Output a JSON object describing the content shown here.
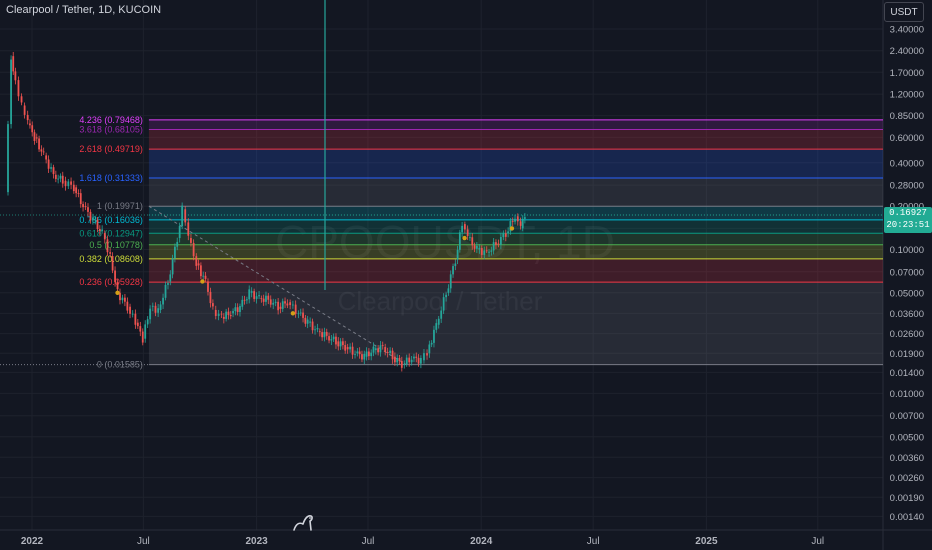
{
  "header": {
    "symbol_title": "Clearpool / Tether, 1D, KUCOIN"
  },
  "currency_button": "USDT",
  "watermark": {
    "symbol": "CPOOUSDT, 1D",
    "description": "Clearpool / Tether"
  },
  "last_price": {
    "value": "0.16927",
    "countdown": "20:23:51"
  },
  "price_axis_labels": [
    "3.40000",
    "2.40000",
    "1.70000",
    "1.20000",
    "0.85000",
    "0.60000",
    "0.40000",
    "0.28000",
    "0.20000",
    "0.14000",
    "0.10000",
    "0.07000",
    "0.05000",
    "0.03600",
    "0.02600",
    "0.01900",
    "0.01400",
    "0.01000",
    "0.00700",
    "0.00500",
    "0.00360",
    "0.00260",
    "0.00190",
    "0.00140"
  ],
  "time_axis_labels": [
    "2022",
    "Jul",
    "2023",
    "Jul",
    "2024",
    "Jul",
    "2025",
    "Jul"
  ],
  "colors": {
    "background": "#131722",
    "up": "#26a69a",
    "down": "#ef5350",
    "axis_text": "#b2b5be"
  },
  "fib_levels": [
    {
      "ratio": "4.236",
      "price": "0.79468",
      "label": "4.236 (0.79468)",
      "color": "#e040fb"
    },
    {
      "ratio": "3.618",
      "price": "0.68105",
      "label": "3.618 (0.68105)",
      "color": "#9c27b0"
    },
    {
      "ratio": "2.618",
      "price": "0.49719",
      "label": "2.618 (0.49719)",
      "color": "#f23645"
    },
    {
      "ratio": "1.618",
      "price": "0.31333",
      "label": "1.618 (0.31333)",
      "color": "#2962ff"
    },
    {
      "ratio": "1",
      "price": "0.19971",
      "label": "1 (0.19971)",
      "color": "#787b86"
    },
    {
      "ratio": "0.786",
      "price": "0.16036",
      "label": "0.786 (0.16036)",
      "color": "#00bcd4"
    },
    {
      "ratio": "0.618",
      "price": "0.12947",
      "label": "0.618 (0.12947)",
      "color": "#089981"
    },
    {
      "ratio": "0.5",
      "price": "0.10778",
      "label": "0.5 (0.10778)",
      "color": "#4caf50"
    },
    {
      "ratio": "0.382",
      "price": "0.08608",
      "label": "0.382 (0.08608)",
      "color": "#cddc39"
    },
    {
      "ratio": "0.236",
      "price": "0.05928",
      "label": "0.236 (0.05928)",
      "color": "#f23645"
    },
    {
      "ratio": "0",
      "price": "0.01585",
      "label": "0 (0.01585)",
      "color": "#787b86"
    }
  ],
  "chart_data": {
    "type": "candlestick",
    "scale": "log",
    "x_range": [
      "2021-11-10",
      "2025-10-15"
    ],
    "y_range": [
      0.0012,
      3.8
    ],
    "close_series": [
      [
        "2021-11-18",
        0.25
      ],
      [
        "2021-11-28",
        2.2
      ],
      [
        "2021-12-05",
        1.5
      ],
      [
        "2021-12-15",
        1.0
      ],
      [
        "2021-12-25",
        0.75
      ],
      [
        "2022-01-05",
        0.6
      ],
      [
        "2022-01-20",
        0.45
      ],
      [
        "2022-02-05",
        0.33
      ],
      [
        "2022-02-20",
        0.3
      ],
      [
        "2022-03-10",
        0.27
      ],
      [
        "2022-03-25",
        0.2
      ],
      [
        "2022-04-10",
        0.16
      ],
      [
        "2022-04-25",
        0.13
      ],
      [
        "2022-05-08",
        0.09
      ],
      [
        "2022-05-20",
        0.05
      ],
      [
        "2022-06-05",
        0.04
      ],
      [
        "2022-06-18",
        0.031
      ],
      [
        "2022-06-30",
        0.024
      ],
      [
        "2022-07-12",
        0.04
      ],
      [
        "2022-07-25",
        0.038
      ],
      [
        "2022-08-10",
        0.06
      ],
      [
        "2022-08-25",
        0.12
      ],
      [
        "2022-09-02",
        0.19
      ],
      [
        "2022-09-12",
        0.12
      ],
      [
        "2022-09-25",
        0.08
      ],
      [
        "2022-10-10",
        0.06
      ],
      [
        "2022-10-22",
        0.038
      ],
      [
        "2022-11-05",
        0.034
      ],
      [
        "2022-11-20",
        0.036
      ],
      [
        "2022-12-05",
        0.04
      ],
      [
        "2022-12-20",
        0.05
      ],
      [
        "2023-01-05",
        0.046
      ],
      [
        "2023-01-20",
        0.045
      ],
      [
        "2023-02-05",
        0.04
      ],
      [
        "2023-02-20",
        0.043
      ],
      [
        "2023-03-10",
        0.036
      ],
      [
        "2023-03-25",
        0.031
      ],
      [
        "2023-04-10",
        0.027
      ],
      [
        "2023-04-25",
        0.025
      ],
      [
        "2023-05-10",
        0.023
      ],
      [
        "2023-05-25",
        0.021
      ],
      [
        "2023-06-10",
        0.019
      ],
      [
        "2023-06-25",
        0.018
      ],
      [
        "2023-07-10",
        0.02
      ],
      [
        "2023-07-25",
        0.021
      ],
      [
        "2023-08-10",
        0.018
      ],
      [
        "2023-08-25",
        0.016
      ],
      [
        "2023-09-10",
        0.0175
      ],
      [
        "2023-09-25",
        0.017
      ],
      [
        "2023-10-05",
        0.019
      ],
      [
        "2023-10-20",
        0.03
      ],
      [
        "2023-11-05",
        0.05
      ],
      [
        "2023-11-20",
        0.085
      ],
      [
        "2023-12-01",
        0.15
      ],
      [
        "2023-12-10",
        0.12
      ],
      [
        "2023-12-25",
        0.1
      ],
      [
        "2024-01-10",
        0.095
      ],
      [
        "2024-01-25",
        0.11
      ],
      [
        "2024-02-10",
        0.13
      ],
      [
        "2024-02-25",
        0.17
      ],
      [
        "2024-03-05",
        0.14
      ],
      [
        "2024-03-12",
        0.17
      ]
    ]
  }
}
